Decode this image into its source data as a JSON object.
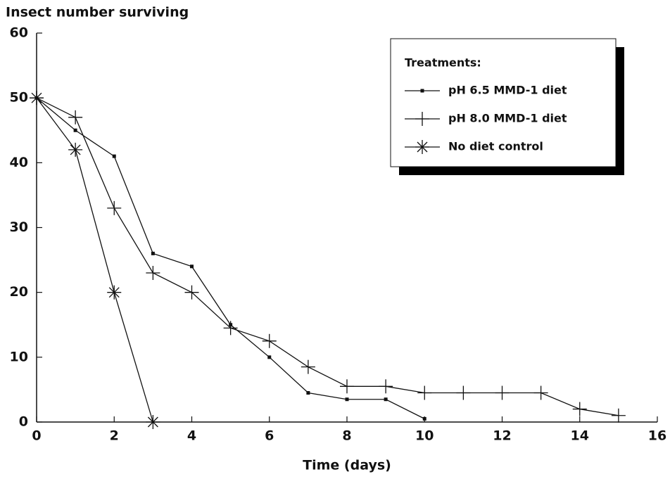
{
  "chart_data": {
    "type": "line",
    "y_axis_label": "Insect number surviving",
    "x_axis_label": "Time (days)",
    "legend_title": "Treatments:",
    "legend_position": "upper right",
    "x": [
      0,
      1,
      2,
      3,
      4,
      5,
      6,
      7,
      8,
      9,
      10,
      11,
      12,
      13,
      14,
      15
    ],
    "series": [
      {
        "name": "pH 6.5 MMD-1 diet",
        "marker": "square",
        "color": "#111111",
        "values": [
          50,
          45,
          41,
          26,
          24,
          15,
          10,
          4.5,
          3.5,
          3.5,
          0.5,
          null,
          null,
          null,
          null,
          null
        ]
      },
      {
        "name": "pH 8.0 MMD-1 diet",
        "marker": "plus",
        "color": "#111111",
        "values": [
          50,
          47,
          33,
          23,
          20,
          14.5,
          12.5,
          8.5,
          5.5,
          5.5,
          4.5,
          4.5,
          4.5,
          4.5,
          2,
          1
        ]
      },
      {
        "name": "No diet control",
        "marker": "asterisk",
        "color": "#111111",
        "values": [
          50,
          42,
          20,
          0,
          null,
          null,
          null,
          null,
          null,
          null,
          null,
          null,
          null,
          null,
          null,
          null
        ]
      }
    ],
    "xlim": [
      0,
      16
    ],
    "xticks": [
      0,
      2,
      4,
      6,
      8,
      10,
      12,
      14,
      16
    ],
    "ylim": [
      0,
      60
    ],
    "yticks": [
      0,
      10,
      20,
      30,
      40,
      50,
      60
    ],
    "grid": false
  }
}
